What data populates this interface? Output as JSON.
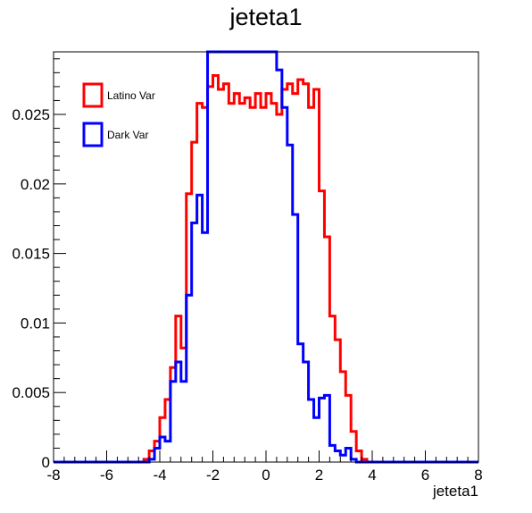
{
  "chart_data": {
    "type": "line",
    "title": "jeteta1",
    "xlabel": "jeteta1",
    "ylabel": "",
    "xlim": [
      -8,
      8
    ],
    "ylim": [
      0,
      0.0295
    ],
    "xticks": [
      "-8",
      "-6",
      "-4",
      "-2",
      "0",
      "2",
      "4",
      "6",
      "8"
    ],
    "yticks": [
      "0",
      "0.005",
      "0.01",
      "0.015",
      "0.02",
      "0.025"
    ],
    "grid": false,
    "legend": {
      "position": "top-left"
    },
    "bin_edges": [
      -4.6,
      -4.4,
      -4.2,
      -4.0,
      -3.8,
      -3.6,
      -3.4,
      -3.2,
      -3.0,
      -2.8,
      -2.6,
      -2.4,
      -2.2,
      -2.0,
      -1.8,
      -1.6,
      -1.4,
      -1.2,
      -1.0,
      -0.8,
      -0.6,
      -0.4,
      -0.2,
      0.0,
      0.2,
      0.4,
      0.6,
      0.8,
      1.0,
      1.2,
      1.4,
      1.6,
      1.8,
      2.0,
      2.2,
      2.4,
      2.6,
      2.8,
      3.0,
      3.2,
      3.4,
      3.6,
      3.8,
      4.0,
      4.2,
      4.4,
      4.6
    ],
    "series": [
      {
        "name": "Latino Var",
        "color": "#ff0000",
        "values": [
          0.0002,
          0.0008,
          0.0015,
          0.0032,
          0.0045,
          0.0068,
          0.0105,
          0.0082,
          0.0193,
          0.023,
          0.0258,
          0.0255,
          0.027,
          0.0278,
          0.0268,
          0.0272,
          0.0258,
          0.0265,
          0.0258,
          0.0262,
          0.0255,
          0.0265,
          0.0255,
          0.0265,
          0.0258,
          0.025,
          0.0268,
          0.0272,
          0.0265,
          0.0275,
          0.0272,
          0.0255,
          0.0268,
          0.0195,
          0.0162,
          0.0105,
          0.0088,
          0.0065,
          0.0048,
          0.0022,
          0.0008,
          0.0002,
          0.0,
          0.0,
          0.0,
          0.0
        ]
      },
      {
        "name": "Dark Var",
        "color": "#0000ff",
        "values": [
          0.0,
          0.0002,
          0.001,
          0.0018,
          0.0015,
          0.0058,
          0.0072,
          0.0058,
          0.012,
          0.0172,
          0.0192,
          0.0165,
          0.0298,
          0.0298,
          0.0298,
          0.0298,
          0.0298,
          0.0298,
          0.0298,
          0.0298,
          0.0298,
          0.0298,
          0.0298,
          0.0298,
          0.0298,
          0.0282,
          0.0255,
          0.0228,
          0.0178,
          0.0085,
          0.0072,
          0.0045,
          0.0032,
          0.0046,
          0.0048,
          0.0012,
          0.0008,
          0.0005,
          0.001,
          0.0002,
          0.0,
          0.0,
          0.0,
          0.0,
          0.0,
          0.0
        ]
      }
    ]
  }
}
